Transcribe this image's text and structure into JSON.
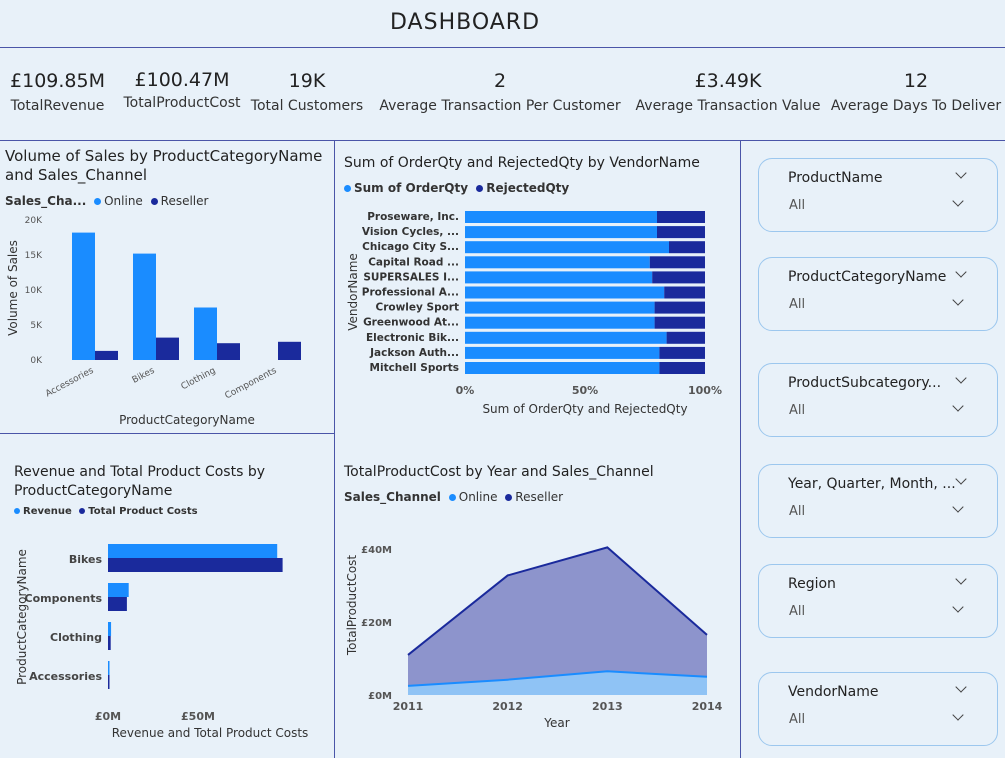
{
  "header": {
    "title": "DASHBOARD"
  },
  "kpis": [
    {
      "value": "£109.85M",
      "label": "TotalRevenue"
    },
    {
      "value": "£100.47M",
      "label": "TotalProductCost"
    },
    {
      "value": "19K",
      "label": "Total Customers"
    },
    {
      "value": "2",
      "label": "Average Transaction Per Customer"
    },
    {
      "value": "£3.49K",
      "label": "Average Transaction Value"
    },
    {
      "value": "12",
      "label": "Average Days To Deliver"
    }
  ],
  "colors": {
    "online": "#1a8cff",
    "reseller": "#1a2a9c",
    "area_online": "#8fc3f5",
    "area_reseller": "#8d94cc"
  },
  "chart_sales": {
    "title_line1": "Volume of Sales by ProductCategoryName",
    "title_line2": "and Sales_Channel",
    "legend_title": "Sales_Cha...",
    "chart_data": {
      "type": "bar",
      "categories": [
        "Accessories",
        "Bikes",
        "Clothing",
        "Components"
      ],
      "series": [
        {
          "name": "Online",
          "values": [
            18200,
            15200,
            7500,
            0
          ]
        },
        {
          "name": "Reseller",
          "values": [
            1300,
            3200,
            2400,
            2600
          ]
        }
      ],
      "xlabel": "ProductCategoryName",
      "ylabel": "Volume of Sales",
      "ylim": [
        0,
        20000
      ],
      "yticks": [
        "0K",
        "5K",
        "10K",
        "15K",
        "20K"
      ]
    }
  },
  "chart_vendor": {
    "title": "Sum of OrderQty and RejectedQty by VendorName",
    "chart_data": {
      "type": "bar",
      "orientation": "horizontal-stacked-100",
      "categories": [
        "Proseware, Inc.",
        "Vision Cycles, ...",
        "Chicago City S...",
        "Capital Road ...",
        "SUPERSALES I...",
        "Professional A...",
        "Crowley Sport",
        "Greenwood At...",
        "Electronic Bik...",
        "Jackson Auth...",
        "Mitchell Sports"
      ],
      "series": [
        {
          "name": "Sum of OrderQty",
          "values": [
            80,
            80,
            85,
            77,
            78,
            83,
            79,
            79,
            84,
            81,
            81
          ]
        },
        {
          "name": "RejectedQty",
          "values": [
            20,
            20,
            15,
            23,
            22,
            17,
            21,
            21,
            16,
            19,
            19
          ]
        }
      ],
      "xlabel": "Sum of OrderQty and RejectedQty",
      "ylabel": "VendorName",
      "xticks": [
        "0%",
        "50%",
        "100%"
      ]
    }
  },
  "chart_revenue": {
    "title_line1": "Revenue and Total Product Costs by",
    "title_line2": "ProductCategoryName",
    "chart_data": {
      "type": "bar",
      "orientation": "horizontal",
      "categories": [
        "Bikes",
        "Components",
        "Clothing",
        "Accessories"
      ],
      "series": [
        {
          "name": "Revenue",
          "values": [
            94000000,
            11500000,
            1700000,
            700000
          ]
        },
        {
          "name": "Total Product Costs",
          "values": [
            97000000,
            10500000,
            1500000,
            600000
          ]
        }
      ],
      "xlabel": "Revenue and Total Product Costs",
      "ylabel": "ProductCategoryName",
      "xlim": [
        0,
        125000000
      ],
      "xticks": [
        "£0M",
        "£50M"
      ]
    }
  },
  "chart_cost": {
    "title": "TotalProductCost by Year and Sales_Channel",
    "legend_title": "Sales_Channel",
    "chart_data": {
      "type": "area",
      "x": [
        2011,
        2012,
        2013,
        2014
      ],
      "series": [
        {
          "name": "Online",
          "values": [
            2500000,
            4200000,
            6500000,
            5000000
          ]
        },
        {
          "name": "Reseller",
          "values": [
            11000000,
            32800000,
            40500000,
            16500000
          ]
        }
      ],
      "xlabel": "Year",
      "ylabel": "TotalProductCost",
      "ylim": [
        0,
        45000000
      ],
      "yticks": [
        "£0M",
        "£20M",
        "£40M"
      ]
    }
  },
  "slicers": [
    {
      "name": "ProductName",
      "value": "All"
    },
    {
      "name": "ProductCategoryName",
      "value": "All"
    },
    {
      "name": "ProductSubcategory...",
      "value": "All"
    },
    {
      "name": "Year, Quarter, Month, ...",
      "value": "All"
    },
    {
      "name": "Region",
      "value": "All"
    },
    {
      "name": "VendorName",
      "value": "All"
    }
  ]
}
